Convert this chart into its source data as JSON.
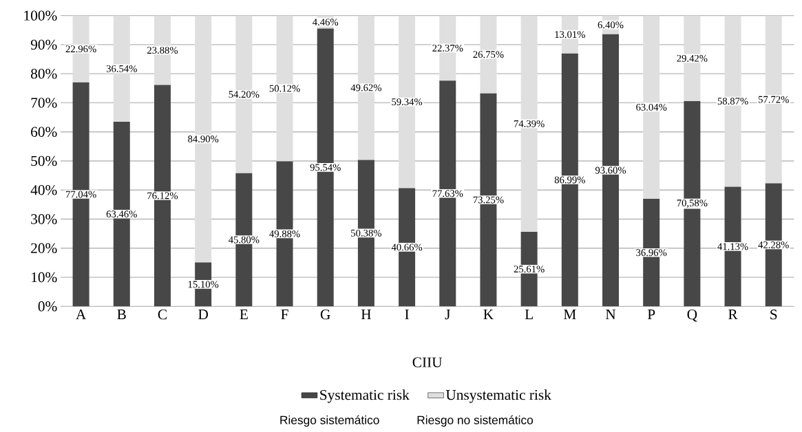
{
  "chart_data": {
    "type": "bar",
    "stacked": true,
    "xlabel": "CIIU",
    "categories": [
      "A",
      "B",
      "C",
      "D",
      "E",
      "F",
      "G",
      "H",
      "I",
      "J",
      "K",
      "L",
      "M",
      "N",
      "P",
      "Q",
      "R",
      "S"
    ],
    "series": [
      {
        "name": "Systematic risk",
        "color": "#474747",
        "values": [
          77.04,
          63.46,
          76.12,
          15.1,
          45.8,
          49.88,
          95.54,
          50.38,
          40.66,
          77.63,
          73.25,
          25.61,
          86.99,
          93.6,
          36.96,
          70.58,
          41.13,
          42.28
        ],
        "value_labels": [
          "77.04%",
          "63.46%",
          "76.12%",
          "15.10%",
          "45.80%",
          "49.88%",
          "95.54%",
          "50.38%",
          "40.66%",
          "77.63%",
          "73.25%",
          "25.61%",
          "86.99%",
          "93.60%",
          "36.96%",
          "70,58%",
          "41.13%",
          "42.28%"
        ]
      },
      {
        "name": "Unsystematic risk",
        "color": "#dfdfdf",
        "values": [
          22.96,
          36.54,
          23.88,
          84.9,
          54.2,
          50.12,
          4.46,
          49.62,
          59.34,
          22.37,
          26.75,
          74.39,
          13.01,
          6.4,
          63.04,
          29.42,
          58.87,
          57.72
        ],
        "value_labels": [
          "22.96%",
          "36.54%",
          "23.88%",
          "84.90%",
          "54.20%",
          "50.12%",
          "4.46%",
          "49.62%",
          "59.34%",
          "22.37%",
          "26.75%",
          "74.39%",
          "13.01%",
          "6.40%",
          "63.04%",
          "29.42%",
          "58.87%",
          "57.72%"
        ]
      }
    ],
    "ylim": [
      0,
      100
    ],
    "yticks": [
      {
        "value": 0,
        "label": "0%"
      },
      {
        "value": 10,
        "label": "10%"
      },
      {
        "value": 20,
        "label": "20%"
      },
      {
        "value": 30,
        "label": "30%"
      },
      {
        "value": 40,
        "label": "40%"
      },
      {
        "value": 50,
        "label": "50%"
      },
      {
        "value": 60,
        "label": "60%"
      },
      {
        "value": 70,
        "label": "70%"
      },
      {
        "value": 80,
        "label": "80%"
      },
      {
        "value": 90,
        "label": "90%"
      },
      {
        "value": 100,
        "label": "100%"
      }
    ],
    "grid": "y",
    "legend": "bottom",
    "annotations": [
      "Riesgo sistemático",
      "Riesgo no sistemático"
    ]
  }
}
